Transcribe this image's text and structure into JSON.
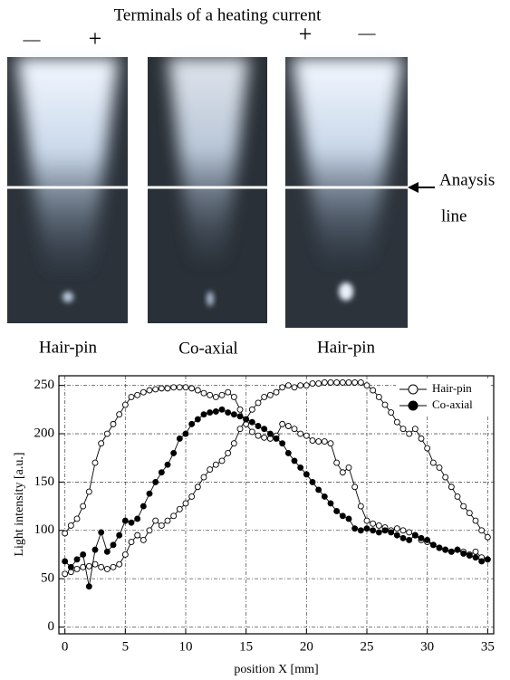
{
  "figure": {
    "title": "Terminals of a heating current",
    "signs": [
      "—",
      "+",
      "+",
      "—"
    ],
    "photo_labels": [
      "Hair-pin",
      "Co-axial",
      "Hair-pin"
    ],
    "annotation": [
      "Anaysis",
      "line"
    ]
  },
  "chart_data": {
    "type": "line",
    "x_label": "position X [mm]",
    "y_label": "Light intensity [a.u.]",
    "xlim": [
      -0.5,
      35.5
    ],
    "ylim": [
      -7,
      260
    ],
    "xticks": [
      0,
      5,
      10,
      15,
      20,
      25,
      30,
      35
    ],
    "yticks": [
      0,
      50,
      100,
      150,
      200,
      250
    ],
    "grid": true,
    "legend": "upper right",
    "x": [
      0,
      0.5,
      1,
      1.5,
      2,
      2.5,
      3,
      3.5,
      4,
      4.5,
      5,
      5.5,
      6,
      6.5,
      7,
      7.5,
      8,
      8.5,
      9,
      9.5,
      10,
      10.5,
      11,
      11.5,
      12,
      12.5,
      13,
      13.5,
      14,
      14.5,
      15,
      15.5,
      16,
      16.5,
      17,
      17.5,
      18,
      18.5,
      19,
      19.5,
      20,
      20.5,
      21,
      21.5,
      22,
      22.5,
      23,
      23.5,
      24,
      24.5,
      25,
      25.5,
      26,
      26.5,
      27,
      27.5,
      28,
      28.5,
      29,
      29.5,
      30,
      30.5,
      31,
      31.5,
      32,
      32.5,
      33,
      33.5,
      34,
      34.5,
      35
    ],
    "series": [
      {
        "name": "Hair-pin",
        "color": "#000000",
        "marker_fill": "#ffffff",
        "values": [
          97,
          105,
          112,
          125,
          140,
          170,
          190,
          200,
          210,
          220,
          230,
          238,
          240,
          243,
          245,
          246,
          247,
          247,
          248,
          248,
          248,
          247,
          245,
          242,
          240,
          238,
          240,
          243,
          238,
          225,
          210,
          202,
          198,
          196,
          195,
          198,
          210,
          208,
          205,
          200,
          198,
          193,
          192,
          192,
          190,
          170,
          160,
          165,
          145,
          125,
          110,
          107,
          105,
          103,
          100,
          102,
          100,
          98,
          95,
          90,
          88,
          85,
          82,
          80,
          78,
          80,
          78,
          75,
          78,
          72,
          70
        ]
      },
      {
        "color": "#000000",
        "marker_fill": "#ffffff",
        "values": [
          55,
          57,
          60,
          62,
          63,
          65,
          62,
          60,
          62,
          65,
          75,
          88,
          95,
          90,
          100,
          110,
          105,
          110,
          115,
          122,
          128,
          135,
          145,
          155,
          163,
          168,
          172,
          180,
          190,
          205,
          215,
          225,
          232,
          238,
          240,
          243,
          248,
          250,
          248,
          250,
          250,
          252,
          252,
          253,
          253,
          253,
          253,
          253,
          253,
          253,
          250,
          245,
          238,
          230,
          222,
          212,
          205,
          200,
          205,
          195,
          185,
          170,
          165,
          155,
          145,
          135,
          125,
          118,
          110,
          100,
          93
        ]
      },
      {
        "name": "Co-axial",
        "color": "#000000",
        "marker_fill": "#000000",
        "values": [
          68,
          62,
          70,
          75,
          42,
          80,
          98,
          78,
          85,
          95,
          110,
          108,
          112,
          125,
          138,
          150,
          160,
          168,
          180,
          195,
          200,
          210,
          215,
          220,
          222,
          223,
          225,
          222,
          220,
          218,
          215,
          212,
          208,
          205,
          200,
          195,
          190,
          180,
          172,
          165,
          158,
          150,
          142,
          135,
          128,
          120,
          115,
          112,
          102,
          100,
          102,
          100,
          98,
          100,
          98,
          95,
          92,
          90,
          95,
          92,
          90,
          85,
          82,
          80,
          78,
          80,
          76,
          74,
          72,
          68,
          70
        ]
      }
    ]
  }
}
